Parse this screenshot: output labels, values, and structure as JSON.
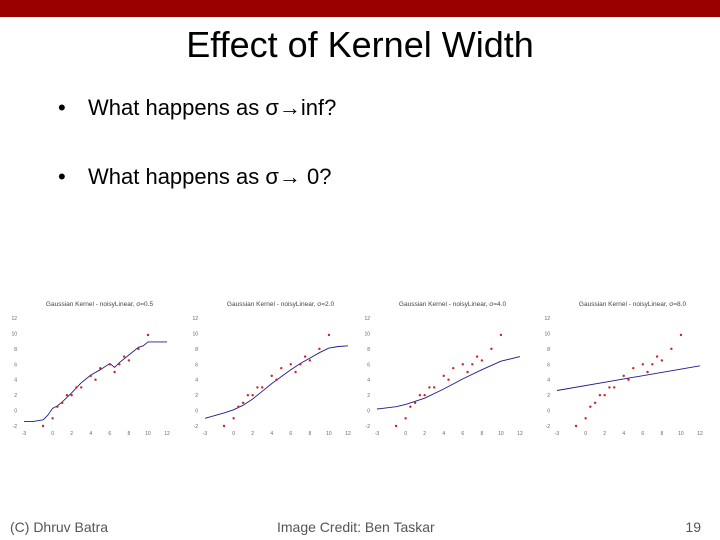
{
  "slide": {
    "title": "Effect of Kernel Width",
    "bullets": [
      "What happens as σ→inf?",
      "What happens as σ→ 0?"
    ],
    "bullet_glyph": "•"
  },
  "footer": {
    "left": "(C) Dhruv Batra",
    "center": "Image Credit: Ben Taskar",
    "page_number": "19"
  },
  "colors": {
    "top_bar": "#990000",
    "fit_line": "#1c1c8c",
    "points": "#cc2222"
  },
  "chart_data": [
    {
      "type": "scatter",
      "title": "Gaussian Kernel - noisyLinear, σ=0.5",
      "xlim": [
        -3,
        12
      ],
      "ylim": [
        -2,
        12
      ],
      "xticks": [
        "-3",
        "0",
        "2",
        "4",
        "6",
        "8",
        "10",
        "12"
      ],
      "yticks": [
        "-2",
        "0",
        "2",
        "4",
        "6",
        "8",
        "10",
        "12"
      ],
      "points": {
        "x": [
          -1,
          0,
          0.5,
          1,
          1.5,
          2,
          2.5,
          3,
          4,
          4.5,
          5,
          6,
          6.5,
          7,
          7.5,
          8,
          9,
          10
        ],
        "y": [
          -2,
          -1,
          0.5,
          1,
          2,
          2,
          3,
          3,
          4.5,
          4,
          5.5,
          6,
          5,
          6,
          7,
          6.5,
          8,
          9.8
        ]
      },
      "fit": {
        "x": [
          -3,
          -2,
          -1,
          -0.5,
          0,
          0.5,
          1,
          2,
          3,
          4,
          5,
          6,
          6.5,
          7,
          8,
          9,
          9.5,
          10,
          11,
          12
        ],
        "y": [
          -1.4,
          -1.4,
          -1.2,
          -0.6,
          0.3,
          0.6,
          1.1,
          2.3,
          3.6,
          4.6,
          5.3,
          6.1,
          5.6,
          6.2,
          7.2,
          8.2,
          8.4,
          8.9,
          8.9,
          8.9
        ]
      }
    },
    {
      "type": "scatter",
      "title": "Gaussian Kernel - noisyLinear, σ=2.0",
      "xlim": [
        -3,
        12
      ],
      "ylim": [
        -2,
        12
      ],
      "xticks": [
        "-3",
        "0",
        "2",
        "4",
        "6",
        "8",
        "10",
        "12"
      ],
      "yticks": [
        "-2",
        "0",
        "2",
        "4",
        "6",
        "8",
        "10",
        "12"
      ],
      "points": {
        "x": [
          -1,
          0,
          0.5,
          1,
          1.5,
          2,
          2.5,
          3,
          4,
          4.5,
          5,
          6,
          6.5,
          7,
          7.5,
          8,
          9,
          10
        ],
        "y": [
          -2,
          -1,
          0.5,
          1,
          2,
          2,
          3,
          3,
          4.5,
          4,
          5.5,
          6,
          5,
          6,
          7,
          6.5,
          8,
          9.8
        ]
      },
      "fit": {
        "x": [
          -3,
          -1,
          0,
          1,
          2,
          3,
          4,
          5,
          6,
          7,
          8,
          9,
          10,
          11,
          12
        ],
        "y": [
          -1.0,
          -0.3,
          0.1,
          0.7,
          1.5,
          2.5,
          3.5,
          4.4,
          5.3,
          6.1,
          6.8,
          7.5,
          8.1,
          8.3,
          8.4
        ]
      }
    },
    {
      "type": "scatter",
      "title": "Gaussian Kernel - noisyLinear, σ=4.0",
      "xlim": [
        -3,
        12
      ],
      "ylim": [
        -2,
        12
      ],
      "xticks": [
        "-3",
        "0",
        "2",
        "4",
        "6",
        "8",
        "10",
        "12"
      ],
      "yticks": [
        "-2",
        "0",
        "2",
        "4",
        "6",
        "8",
        "10",
        "12"
      ],
      "points": {
        "x": [
          -1,
          0,
          0.5,
          1,
          1.5,
          2,
          2.5,
          3,
          4,
          4.5,
          5,
          6,
          6.5,
          7,
          7.5,
          8,
          9,
          10
        ],
        "y": [
          -2,
          -1,
          0.5,
          1,
          2,
          2,
          3,
          3,
          4.5,
          4,
          5.5,
          6,
          5,
          6,
          7,
          6.5,
          8,
          9.8
        ]
      },
      "fit": {
        "x": [
          -3,
          -1,
          0,
          2,
          4,
          6,
          8,
          10,
          12
        ],
        "y": [
          0.2,
          0.5,
          0.8,
          1.6,
          2.8,
          4.1,
          5.3,
          6.4,
          7.0
        ]
      }
    },
    {
      "type": "scatter",
      "title": "Gaussian Kernel - noisyLinear, σ=8.0",
      "xlim": [
        -3,
        12
      ],
      "ylim": [
        -2,
        12
      ],
      "xticks": [
        "-3",
        "0",
        "2",
        "4",
        "6",
        "8",
        "10",
        "12"
      ],
      "yticks": [
        "-2",
        "0",
        "2",
        "4",
        "6",
        "8",
        "10",
        "12"
      ],
      "points": {
        "x": [
          -1,
          0,
          0.5,
          1,
          1.5,
          2,
          2.5,
          3,
          4,
          4.5,
          5,
          6,
          6.5,
          7,
          7.5,
          8,
          9,
          10
        ],
        "y": [
          -2,
          -1,
          0.5,
          1,
          2,
          2,
          3,
          3,
          4.5,
          4,
          5.5,
          6,
          5,
          6,
          7,
          6.5,
          8,
          9.8
        ]
      },
      "fit": {
        "x": [
          -3,
          12
        ],
        "y": [
          2.6,
          5.8
        ]
      }
    }
  ]
}
